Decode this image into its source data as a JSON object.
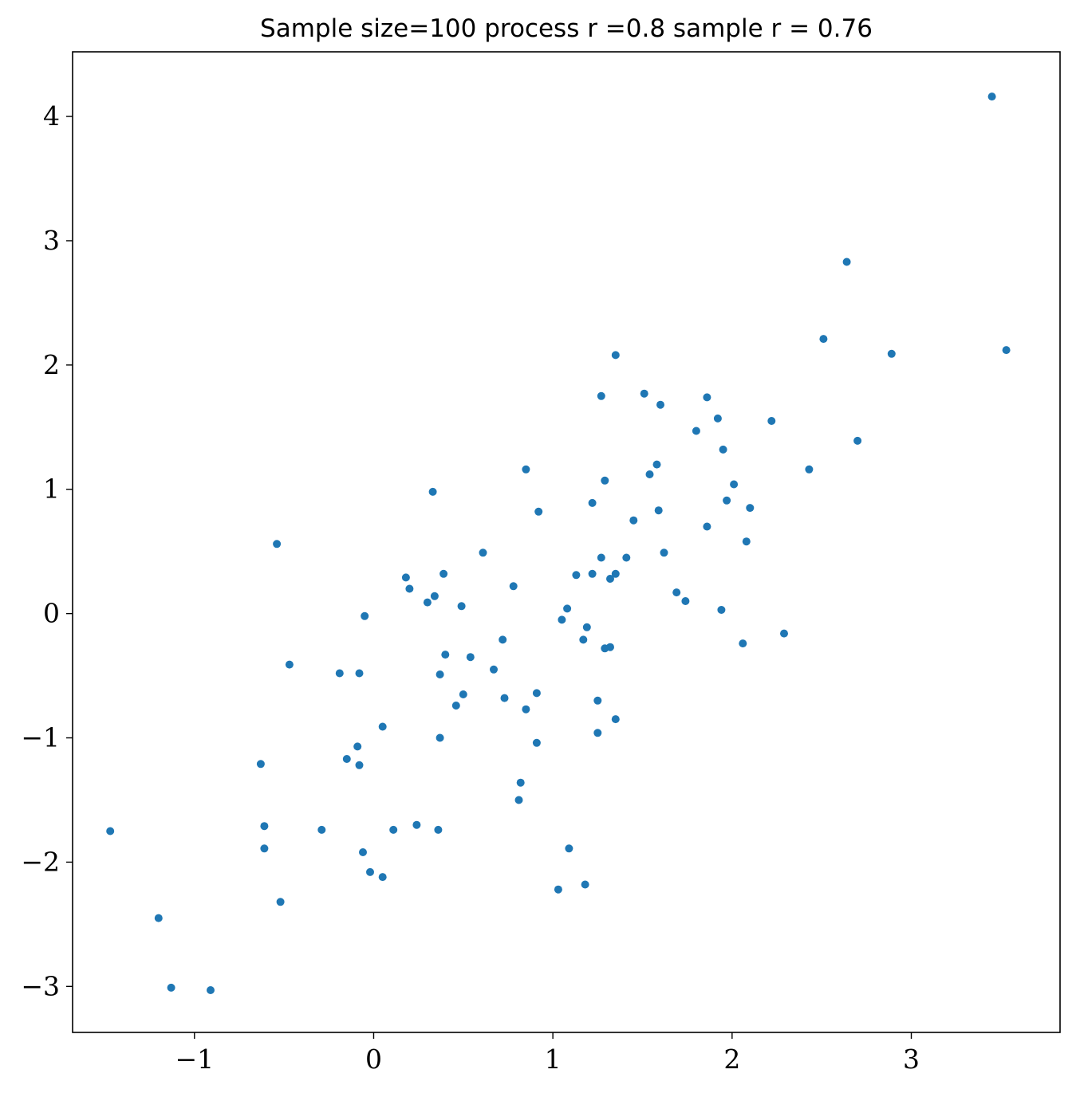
{
  "chart_data": {
    "type": "scatter",
    "title": "Sample size=100 process r =0.8 sample r = 0.76",
    "xlabel": "",
    "ylabel": "",
    "xlim": [
      -1.68,
      3.83
    ],
    "ylim": [
      -3.37,
      4.52
    ],
    "x_ticks": [
      -1,
      0,
      1,
      2,
      3
    ],
    "y_ticks": [
      -3,
      -2,
      -1,
      0,
      1,
      2,
      3,
      4
    ],
    "x_tick_labels": [
      "−1",
      "0",
      "1",
      "2",
      "3"
    ],
    "y_tick_labels": [
      "−3",
      "−2",
      "−1",
      "0",
      "1",
      "2",
      "3",
      "4"
    ],
    "grid": false,
    "marker_color": "#1f77b4",
    "series": [
      {
        "x": [
          3.45,
          2.64,
          2.51,
          2.89,
          3.53,
          1.35,
          1.51,
          1.27,
          1.86,
          1.6,
          2.22,
          1.92,
          1.8,
          1.95,
          2.7,
          1.58,
          1.54,
          2.43,
          1.29,
          2.01,
          0.85,
          1.97,
          1.22,
          0.92,
          2.1,
          0.33,
          1.59,
          1.45,
          1.86,
          2.08,
          1.62,
          0.61,
          1.27,
          1.41,
          -0.54,
          1.13,
          1.22,
          1.35,
          1.32,
          0.39,
          0.18,
          0.2,
          0.78,
          1.69,
          0.34,
          1.74,
          0.3,
          0.49,
          1.08,
          1.94,
          -0.05,
          1.05,
          1.19,
          0.72,
          1.17,
          2.29,
          2.06,
          1.32,
          1.29,
          0.4,
          0.54,
          -0.47,
          0.67,
          -0.19,
          -0.08,
          0.37,
          0.91,
          0.5,
          0.73,
          1.25,
          0.46,
          0.85,
          1.35,
          0.05,
          1.25,
          0.37,
          0.91,
          -0.09,
          -0.15,
          -0.08,
          -0.63,
          0.82,
          0.81,
          -0.61,
          0.24,
          -1.47,
          -0.29,
          0.11,
          0.36,
          1.09,
          -0.61,
          -0.06,
          -0.02,
          0.05,
          -0.52,
          1.18,
          1.03,
          -1.2,
          -1.13,
          -0.91
        ],
        "y": [
          4.16,
          2.83,
          2.21,
          2.09,
          2.12,
          2.08,
          1.77,
          1.75,
          1.74,
          1.68,
          1.55,
          1.57,
          1.47,
          1.32,
          1.39,
          1.2,
          1.12,
          1.16,
          1.07,
          1.04,
          1.16,
          0.91,
          0.89,
          0.82,
          0.85,
          0.98,
          0.83,
          0.75,
          0.7,
          0.58,
          0.49,
          0.49,
          0.45,
          0.45,
          0.56,
          0.31,
          0.32,
          0.32,
          0.28,
          0.32,
          0.29,
          0.2,
          0.22,
          0.17,
          0.14,
          0.1,
          0.09,
          0.06,
          0.04,
          0.03,
          -0.02,
          -0.05,
          -0.11,
          -0.21,
          -0.21,
          -0.16,
          -0.24,
          -0.27,
          -0.28,
          -0.33,
          -0.35,
          -0.41,
          -0.45,
          -0.48,
          -0.48,
          -0.49,
          -0.64,
          -0.65,
          -0.68,
          -0.7,
          -0.74,
          -0.77,
          -0.85,
          -0.91,
          -0.96,
          -1.0,
          -1.04,
          -1.07,
          -1.17,
          -1.22,
          -1.21,
          -1.36,
          -1.5,
          -1.71,
          -1.7,
          -1.75,
          -1.74,
          -1.74,
          -1.74,
          -1.89,
          -1.89,
          -1.92,
          -2.08,
          -2.12,
          -2.32,
          -2.18,
          -2.22,
          -2.45,
          -3.01,
          -3.03
        ]
      }
    ]
  }
}
